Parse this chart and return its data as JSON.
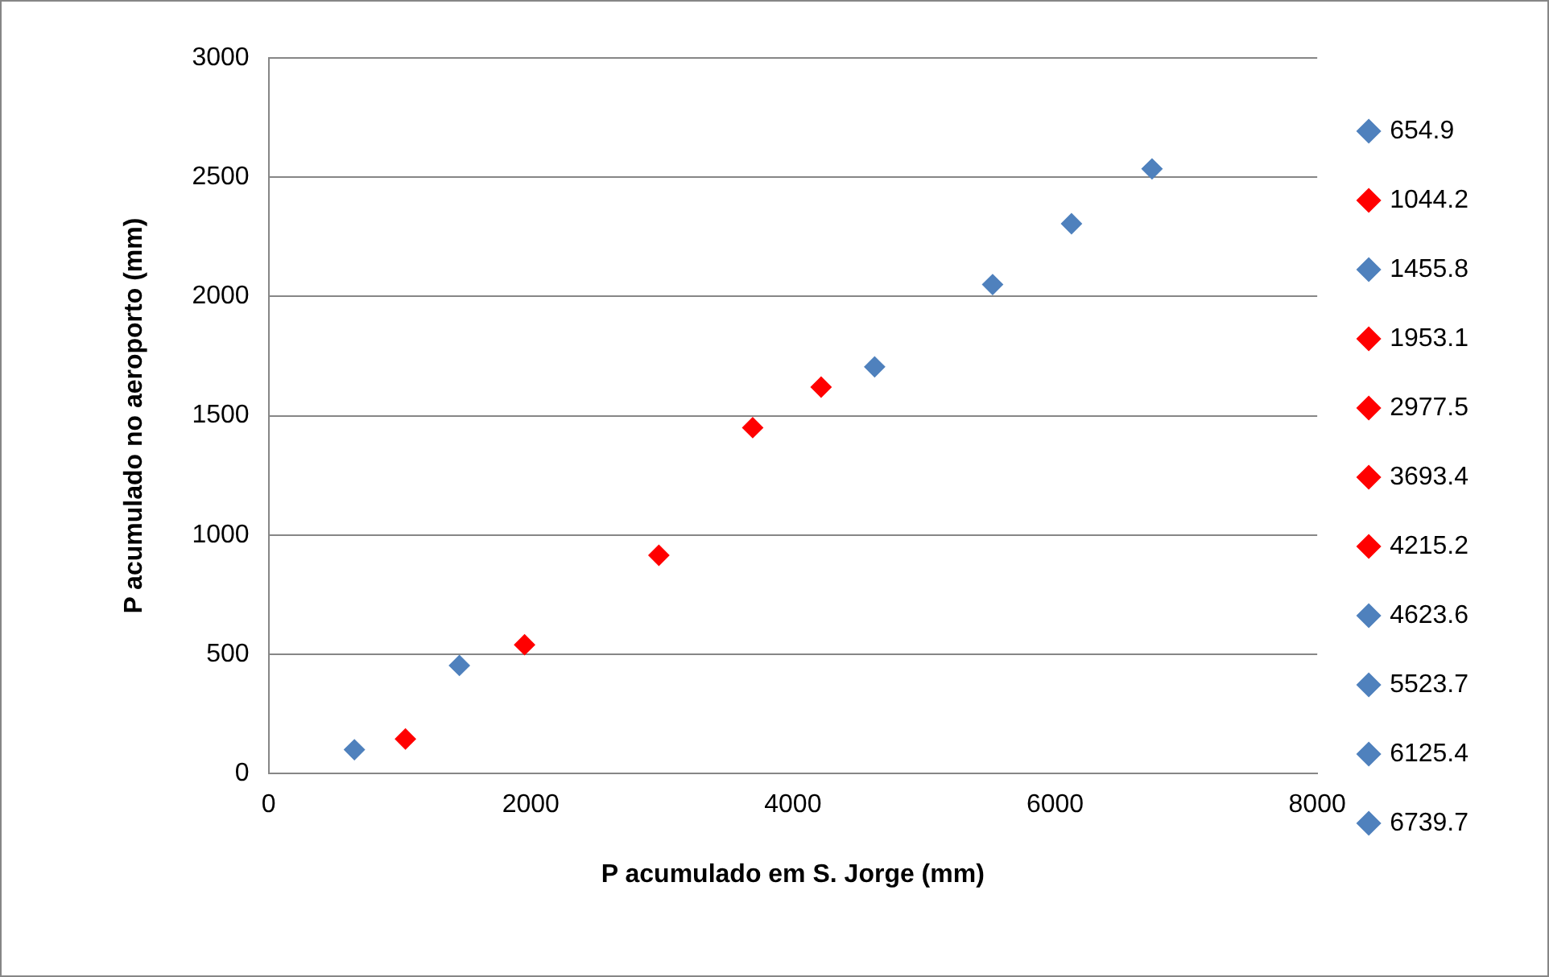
{
  "chart_data": {
    "type": "scatter",
    "xlabel": "P acumulado em S. Jorge (mm)",
    "ylabel": "P acumulado no aeroporto (mm)",
    "xlim": [
      0,
      8000
    ],
    "xticks": [
      0,
      2000,
      4000,
      6000,
      8000
    ],
    "ylim": [
      0,
      3000
    ],
    "yticks": [
      0,
      500,
      1000,
      1500,
      2000,
      2500,
      3000
    ],
    "grid": "y",
    "legend": "right",
    "marker": "diamond",
    "series": [
      {
        "name": "654.9",
        "color": "#4f81bd",
        "x": [
          654.9
        ],
        "values": [
          100
        ]
      },
      {
        "name": "1044.2",
        "color": "#ff0000",
        "x": [
          1044.2
        ],
        "values": [
          145
        ]
      },
      {
        "name": "1455.8",
        "color": "#4f81bd",
        "x": [
          1455.8
        ],
        "values": [
          453
        ]
      },
      {
        "name": "1953.1",
        "color": "#ff0000",
        "x": [
          1953.1
        ],
        "values": [
          540
        ]
      },
      {
        "name": "2977.5",
        "color": "#ff0000",
        "x": [
          2977.5
        ],
        "values": [
          915
        ]
      },
      {
        "name": "3693.4",
        "color": "#ff0000",
        "x": [
          3693.4
        ],
        "values": [
          1450
        ]
      },
      {
        "name": "4215.2",
        "color": "#ff0000",
        "x": [
          4215.2
        ],
        "values": [
          1620
        ]
      },
      {
        "name": "4623.6",
        "color": "#4f81bd",
        "x": [
          4623.6
        ],
        "values": [
          1705
        ]
      },
      {
        "name": "5523.7",
        "color": "#4f81bd",
        "x": [
          5523.7
        ],
        "values": [
          2050
        ]
      },
      {
        "name": "6125.4",
        "color": "#4f81bd",
        "x": [
          6125.4
        ],
        "values": [
          2305
        ]
      },
      {
        "name": "6739.7",
        "color": "#4f81bd",
        "x": [
          6739.7
        ],
        "values": [
          2535
        ]
      }
    ]
  }
}
